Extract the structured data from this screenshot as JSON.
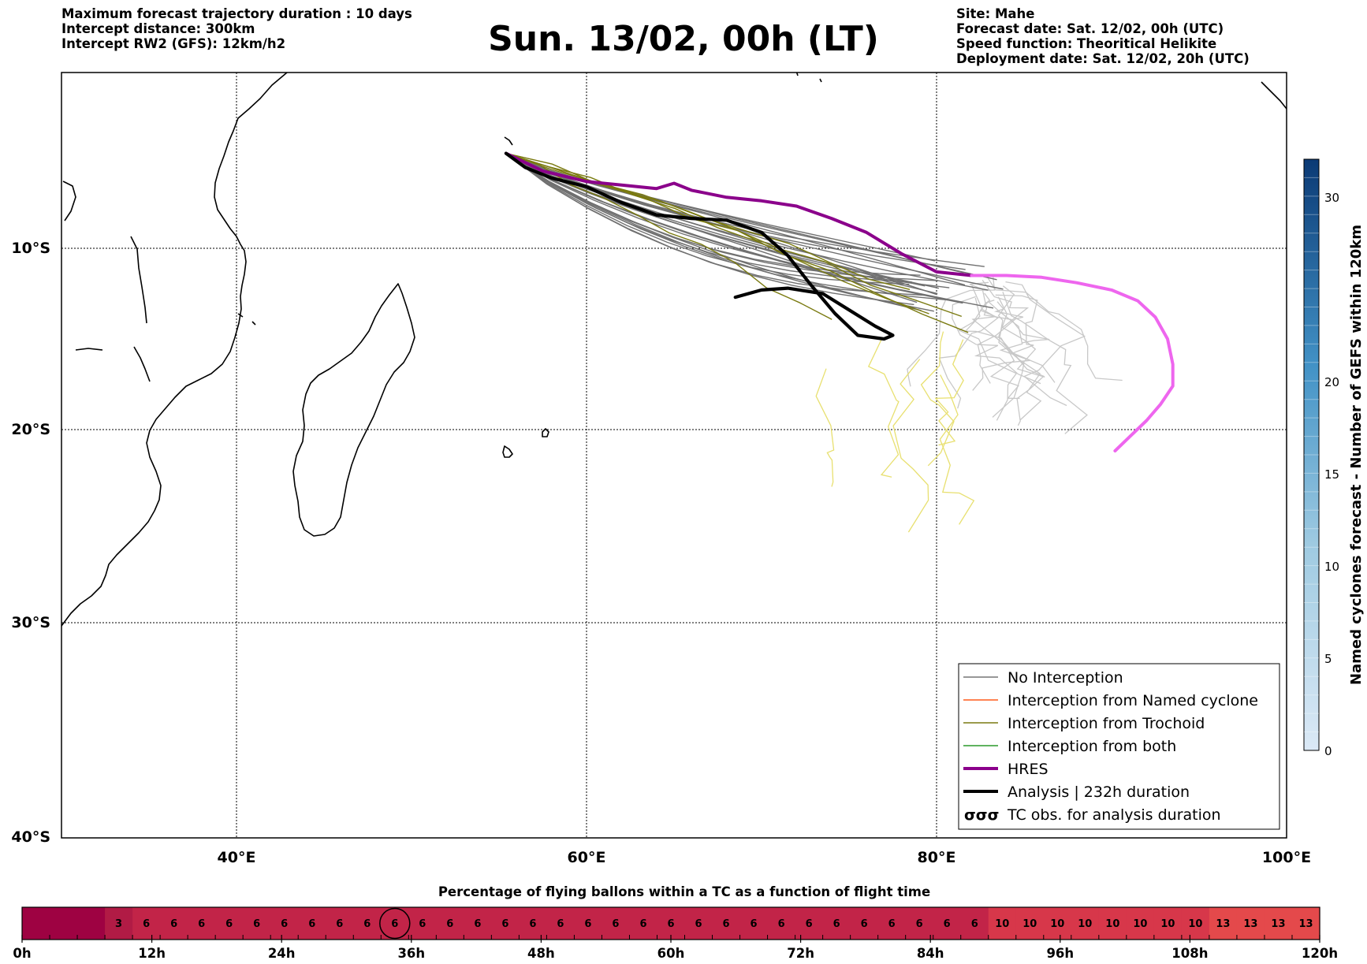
{
  "header": {
    "left_lines": [
      "Maximum forecast trajectory duration : 10 days",
      "Intercept distance: 300km",
      "Intercept RW2 (GFS):  12km/h2"
    ],
    "title": "Sun. 13/02, 00h (LT)",
    "right_lines": [
      "Site: Mahe",
      "Forecast date: Sat. 12/02, 00h (UTC)",
      "Speed function: Theoritical Helikite",
      "Deployment date: Sat. 12/02, 20h (UTC)"
    ]
  },
  "chart_data": [
    {
      "type": "map-trajectories",
      "x_ticks": [
        "40°E",
        "60°E",
        "80°E",
        "100°E"
      ],
      "y_ticks": [
        "10°S",
        "20°S",
        "30°S",
        "40°S"
      ],
      "lon_range": [
        30,
        100
      ],
      "lat_range": [
        -40,
        4
      ],
      "grid": true,
      "legend_position": "bottom-right",
      "legend": [
        {
          "label": "No Interception",
          "color": "#777777",
          "style": "thin"
        },
        {
          "label": "Interception from Named cyclone",
          "color": "#ff5a1a",
          "style": "thin"
        },
        {
          "label": "Interception from Trochoid",
          "color": "#7a7a10",
          "style": "thin"
        },
        {
          "label": "Interception from both",
          "color": "#2a9a2a",
          "style": "thin"
        },
        {
          "label": "HRES",
          "color": "#8b008b",
          "style": "thick"
        },
        {
          "label": "Analysis | 232h duration",
          "color": "#000000",
          "style": "thick"
        },
        {
          "label": "TC obs. for analysis duration",
          "color": "#000000",
          "style": "symbol",
          "symbol": "σσσ"
        }
      ],
      "series": [
        {
          "name": "HRES",
          "color": "#8b008b",
          "points": [
            [
              55.4,
              -4.6
            ],
            [
              57.5,
              -5.6
            ],
            [
              60,
              -6.2
            ],
            [
              62,
              -6.4
            ],
            [
              64,
              -6.6
            ],
            [
              65,
              -6.3
            ],
            [
              66,
              -6.7
            ],
            [
              68,
              -7.1
            ],
            [
              70,
              -7.3
            ],
            [
              72,
              -7.6
            ],
            [
              74,
              -8.3
            ],
            [
              76,
              -9.1
            ],
            [
              78,
              -10.3
            ],
            [
              80,
              -11.3
            ],
            [
              82,
              -11.5
            ]
          ]
        },
        {
          "name": "HRES (extended)",
          "color": "#ee66ee",
          "points": [
            [
              82,
              -11.5
            ],
            [
              84,
              -11.5
            ],
            [
              86,
              -11.6
            ],
            [
              88,
              -11.9
            ],
            [
              90,
              -12.3
            ],
            [
              91.5,
              -12.9
            ],
            [
              92.5,
              -13.8
            ],
            [
              93.2,
              -15
            ],
            [
              93.5,
              -16.4
            ],
            [
              93.5,
              -17.6
            ],
            [
              92.8,
              -18.6
            ],
            [
              92,
              -19.5
            ],
            [
              91,
              -20.4
            ],
            [
              90.2,
              -21.1
            ]
          ]
        },
        {
          "name": "Analysis | 232h duration",
          "color": "#000000",
          "points": [
            [
              55.4,
              -4.6
            ],
            [
              56.5,
              -5.4
            ],
            [
              58,
              -6.0
            ],
            [
              60,
              -6.5
            ],
            [
              62,
              -7.4
            ],
            [
              64,
              -8.1
            ],
            [
              66,
              -8.3
            ],
            [
              68,
              -8.4
            ],
            [
              70,
              -9.1
            ],
            [
              71.5,
              -10.4
            ],
            [
              72.8,
              -12.0
            ],
            [
              74.2,
              -13.6
            ],
            [
              75.5,
              -14.8
            ],
            [
              77,
              -15.0
            ],
            [
              77.5,
              -14.8
            ],
            [
              76.5,
              -14.3
            ],
            [
              75,
              -13.4
            ],
            [
              73.5,
              -12.5
            ],
            [
              71.5,
              -12.2
            ],
            [
              70,
              -12.3
            ],
            [
              68.5,
              -12.7
            ]
          ]
        }
      ],
      "colorbar": {
        "label": "Named cyclones forecast - Number of GEFS within 120km",
        "ticks": [
          "0",
          "5",
          "10",
          "15",
          "20",
          "30"
        ],
        "range": [
          0,
          32
        ]
      }
    },
    {
      "type": "heatmap",
      "title": "Percentage of flying ballons within a TC as a function of flight time",
      "x_tick_labels": [
        "0h",
        "12h",
        "24h",
        "36h",
        "48h",
        "60h",
        "72h",
        "84h",
        "96h",
        "108h",
        "120h"
      ],
      "cells": [
        "",
        "",
        "",
        "3",
        "6",
        "6",
        "6",
        "6",
        "6",
        "6",
        "6",
        "6",
        "6",
        "6",
        "6",
        "6",
        "6",
        "6",
        "6",
        "6",
        "6",
        "6",
        "6",
        "6",
        "6",
        "6",
        "6",
        "6",
        "6",
        "6",
        "6",
        "6",
        "6",
        "6",
        "6",
        "10",
        "10",
        "10",
        "10",
        "10",
        "10",
        "10",
        "10",
        "13",
        "13",
        "13",
        "13"
      ],
      "highlighted_cell_index": 13,
      "colors": {
        "0": "#9e0242",
        "3": "#b11b45",
        "6": "#c22448",
        "10": "#d7374a",
        "13": "#e4494b"
      }
    }
  ]
}
